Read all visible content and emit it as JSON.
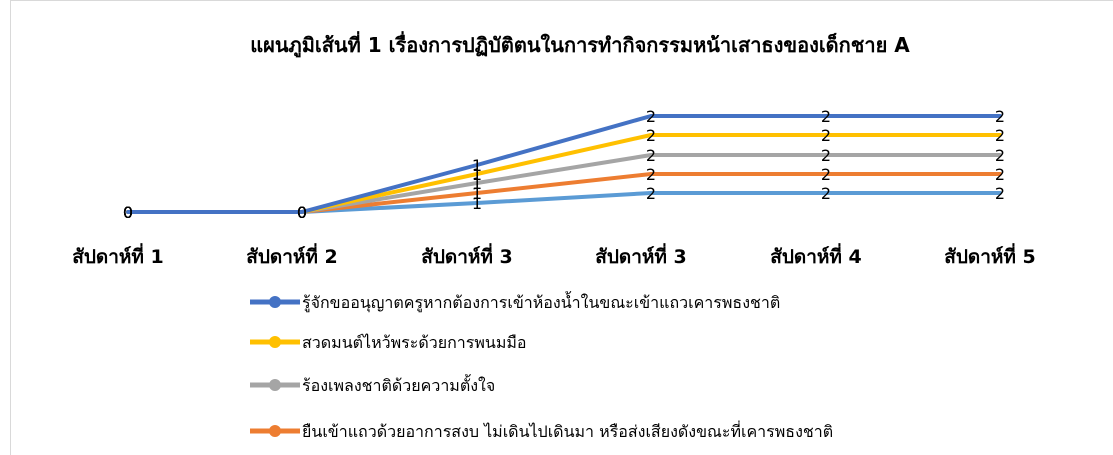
{
  "chart_data": {
    "type": "line",
    "title": "แผนภูมิเส้นที่ 1 เรื่องการปฏิบัติตนในการทำกิจกรรมหน้าเสาธงของเด็กชาย A",
    "categories": [
      "สัปดาห์ที่ 1",
      "สัปดาห์ที่ 2",
      "สัปดาห์ที่ 3",
      "สัปดาห์ที่ 3",
      "สัปดาห์ที่ 4",
      "สัปดาห์ที่ 5"
    ],
    "series": [
      {
        "name": "รู้จักขออนุญาตครูหากต้องการเข้าห้องน้ำในขณะเข้าแถวเคารพธงชาติ",
        "values": [
          0,
          0,
          1,
          2,
          2,
          2
        ],
        "color": "#4472c4"
      },
      {
        "name": "สวดมนต์ไหว้พระด้วยการพนมมือ",
        "values": [
          0,
          0,
          1,
          2,
          2,
          2
        ],
        "color": "#ffc000"
      },
      {
        "name": "ร้องเพลงชาติด้วยความตั้งใจ",
        "values": [
          0,
          0,
          1,
          2,
          2,
          2
        ],
        "color": "#a5a5a5"
      },
      {
        "name": "ยืนเข้าแถวด้วยอาการสงบ ไม่เดินไปเดินมา หรือส่งเสียงดังขณะที่เคารพธงชาติ",
        "values": [
          0,
          0,
          1,
          2,
          2,
          2
        ],
        "color": "#ed7d31"
      },
      {
        "values": [
          0,
          0,
          1,
          2,
          2,
          2
        ],
        "color": "#5b9bd5"
      }
    ],
    "data_labels": true,
    "grid": false,
    "legend_position": "bottom"
  }
}
